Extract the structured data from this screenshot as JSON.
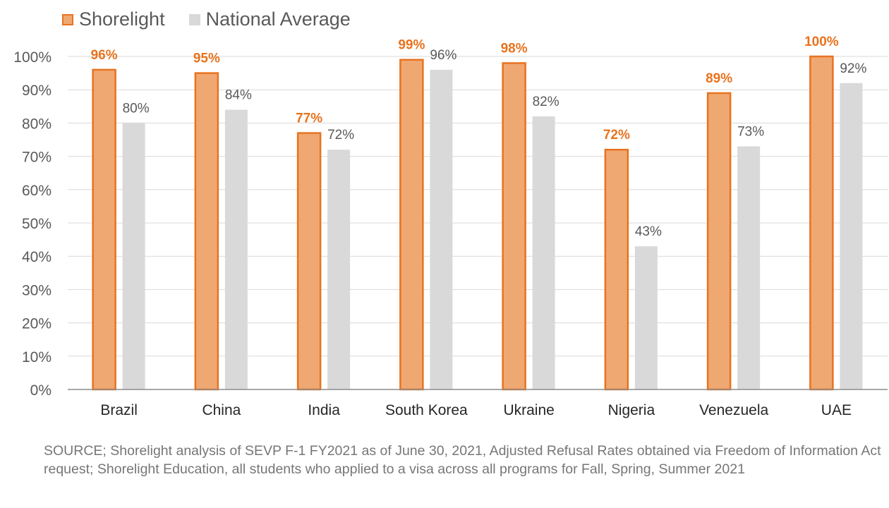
{
  "chart_data": {
    "type": "bar",
    "title": "",
    "xlabel": "",
    "ylabel": "",
    "ylim": [
      0,
      100
    ],
    "yticks": [
      "0%",
      "10%",
      "20%",
      "30%",
      "40%",
      "50%",
      "60%",
      "70%",
      "80%",
      "90%",
      "100%"
    ],
    "grid": true,
    "legend_position": "top-left",
    "categories": [
      "Brazil",
      "China",
      "India",
      "South Korea",
      "Ukraine",
      "Nigeria",
      "Venezuela",
      "UAE"
    ],
    "series": [
      {
        "name": "Shorelight",
        "values": [
          96,
          95,
          77,
          99,
          98,
          72,
          89,
          100
        ],
        "labels": [
          "96%",
          "95%",
          "77%",
          "99%",
          "98%",
          "72%",
          "89%",
          "100%"
        ],
        "color": "#f0a872",
        "border_color": "#e8731f",
        "label_color": "#e8731f"
      },
      {
        "name": "National Average",
        "values": [
          80,
          84,
          72,
          96,
          82,
          43,
          73,
          92
        ],
        "labels": [
          "80%",
          "84%",
          "72%",
          "96%",
          "82%",
          "43%",
          "73%",
          "92%"
        ],
        "color": "#d9d9d9",
        "label_color": "#595959"
      }
    ]
  },
  "source_note": "SOURCE; Shorelight analysis of SEVP F-1 FY2021 as of June 30, 2021, Adjusted Refusal Rates obtained via Freedom of Information Act request; Shorelight Education, all students who applied to a visa across all programs for Fall, Spring, Summer 2021"
}
